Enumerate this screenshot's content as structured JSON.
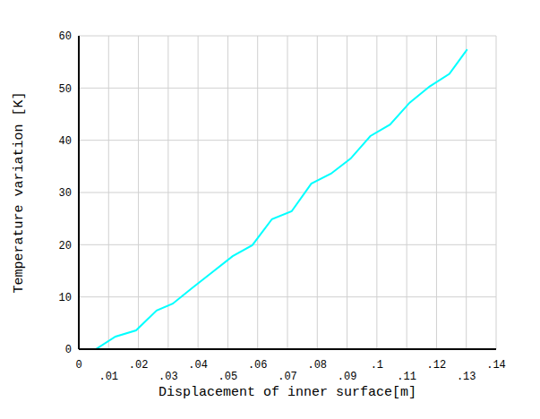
{
  "chart_data": {
    "type": "line",
    "x_label": "Displacement of inner surface[m]",
    "y_label": "Temperature variation [K]",
    "x": [
      0.0057,
      0.0123,
      0.0192,
      0.0261,
      0.0315,
      0.038,
      0.0447,
      0.0516,
      0.0582,
      0.0648,
      0.0714,
      0.078,
      0.0846,
      0.0912,
      0.0978,
      0.1044,
      0.111,
      0.1177,
      0.1243,
      0.1303
    ],
    "values": [
      0,
      2.4,
      3.6,
      7.4,
      8.7,
      11.7,
      14.7,
      17.8,
      19.9,
      24.9,
      26.4,
      31.7,
      33.6,
      36.5,
      40.8,
      43.0,
      47.2,
      50.3,
      52.7,
      57.4
    ],
    "color": "#00ffff",
    "xlim": [
      0,
      0.14
    ],
    "xticks": [
      0,
      {
        "value": 0.01,
        "label": ".01"
      },
      {
        "value": 0.02,
        "label": ".02"
      },
      {
        "value": 0.03,
        "label": ".03"
      },
      {
        "value": 0.04,
        "label": ".04"
      },
      {
        "value": 0.05,
        "label": ".05"
      },
      {
        "value": 0.06,
        "label": ".06"
      },
      {
        "value": 0.07,
        "label": ".07"
      },
      {
        "value": 0.08,
        "label": ".08"
      },
      {
        "value": 0.09,
        "label": ".09"
      },
      {
        "value": 0.1,
        "label": ".1"
      },
      {
        "value": 0.11,
        "label": ".11"
      },
      {
        "value": 0.12,
        "label": ".12"
      },
      {
        "value": 0.13,
        "label": ".13"
      },
      {
        "value": 0.14,
        "label": ".14"
      }
    ],
    "ylim": [
      0,
      60
    ],
    "yticks": [
      0,
      10,
      20,
      30,
      40,
      50,
      60
    ],
    "grid": true
  }
}
